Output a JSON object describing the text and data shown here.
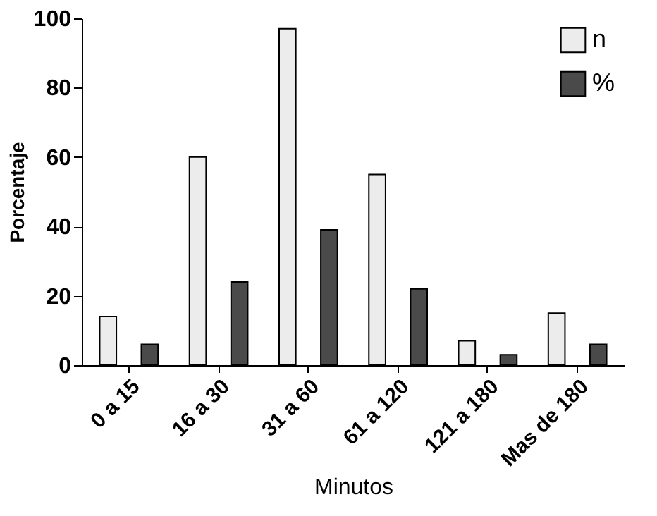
{
  "chart_data": {
    "type": "bar",
    "xlabel": "Minutos",
    "ylabel": "Porcentaje",
    "categories": [
      "0 a 15",
      "16 a 30",
      "31 a 60",
      "61 a 120",
      "121 a 180",
      "Mas de 180"
    ],
    "series": [
      {
        "name": "n",
        "color": "#ececec",
        "values": [
          14,
          60,
          97,
          55,
          7,
          15
        ]
      },
      {
        "name": "%",
        "color": "#4a4a4a",
        "values": [
          6,
          24,
          39,
          22,
          3,
          6
        ]
      }
    ],
    "ylim": [
      0,
      100
    ],
    "yticks": [
      0,
      20,
      40,
      60,
      80,
      100
    ],
    "grid": false,
    "legend": "top right"
  }
}
